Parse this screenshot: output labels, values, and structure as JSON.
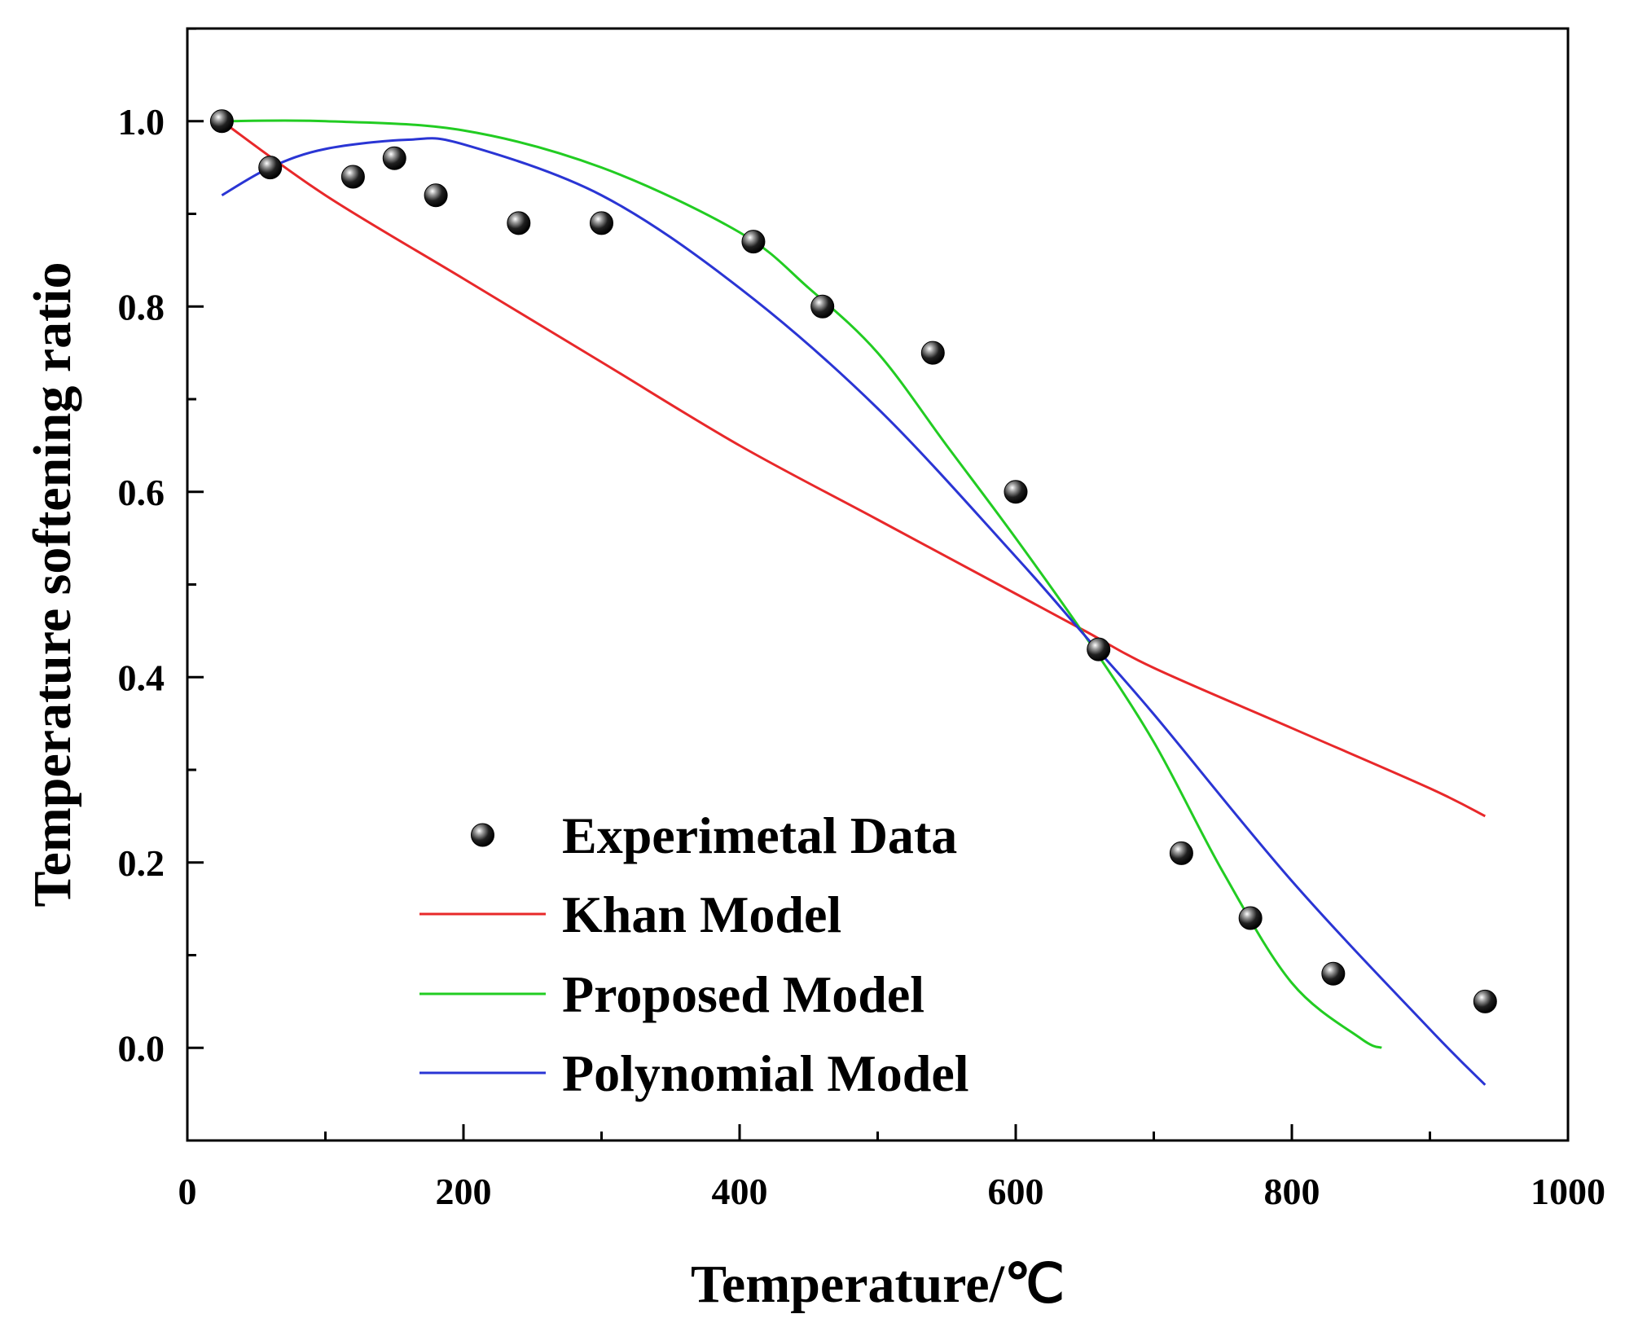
{
  "chart_data": {
    "type": "line",
    "title": "",
    "xlabel": "Temperature/℃",
    "ylabel": "Temperature softening ratio",
    "xlim": [
      0,
      1000
    ],
    "ylim": [
      -0.1,
      1.1
    ],
    "xticks": [
      0,
      200,
      400,
      600,
      800,
      1000
    ],
    "xtick_labels": [
      "0",
      "200",
      "400",
      "600",
      "800",
      "1000"
    ],
    "yticks": [
      0.0,
      0.2,
      0.4,
      0.6,
      0.8,
      1.0
    ],
    "ytick_labels": [
      "0.0",
      "0.2",
      "0.4",
      "0.6",
      "0.8",
      "1.0"
    ],
    "grid": false,
    "legend_position": "bottom-center",
    "series": [
      {
        "name": "Experimetal Data",
        "kind": "scatter",
        "color": "#000000",
        "x": [
          25,
          60,
          120,
          150,
          180,
          240,
          300,
          410,
          460,
          540,
          600,
          660,
          720,
          770,
          830,
          940
        ],
        "y": [
          1.0,
          0.95,
          0.94,
          0.96,
          0.92,
          0.89,
          0.89,
          0.87,
          0.8,
          0.75,
          0.6,
          0.43,
          0.21,
          0.14,
          0.08,
          0.05
        ]
      },
      {
        "name": "Khan Model",
        "kind": "line",
        "color": "#e8282a",
        "x": [
          25,
          100,
          200,
          300,
          400,
          500,
          600,
          650,
          700,
          800,
          900,
          940
        ],
        "y": [
          1.0,
          0.92,
          0.83,
          0.74,
          0.65,
          0.57,
          0.49,
          0.45,
          0.41,
          0.345,
          0.28,
          0.25
        ]
      },
      {
        "name": "Proposed Model",
        "kind": "line",
        "color": "#22cc22",
        "x": [
          25,
          100,
          200,
          300,
          400,
          450,
          500,
          550,
          600,
          650,
          700,
          750,
          800,
          850,
          865
        ],
        "y": [
          1.0,
          1.0,
          0.99,
          0.95,
          0.88,
          0.82,
          0.75,
          0.65,
          0.55,
          0.445,
          0.33,
          0.19,
          0.07,
          0.01,
          0.0
        ]
      },
      {
        "name": "Polynomial Model",
        "kind": "line",
        "color": "#2a35d4",
        "x": [
          25,
          60,
          100,
          160,
          200,
          300,
          400,
          500,
          600,
          650,
          700,
          800,
          900,
          940
        ],
        "y": [
          0.92,
          0.95,
          0.97,
          0.98,
          0.975,
          0.92,
          0.82,
          0.69,
          0.53,
          0.445,
          0.36,
          0.18,
          0.02,
          -0.04
        ]
      }
    ]
  }
}
